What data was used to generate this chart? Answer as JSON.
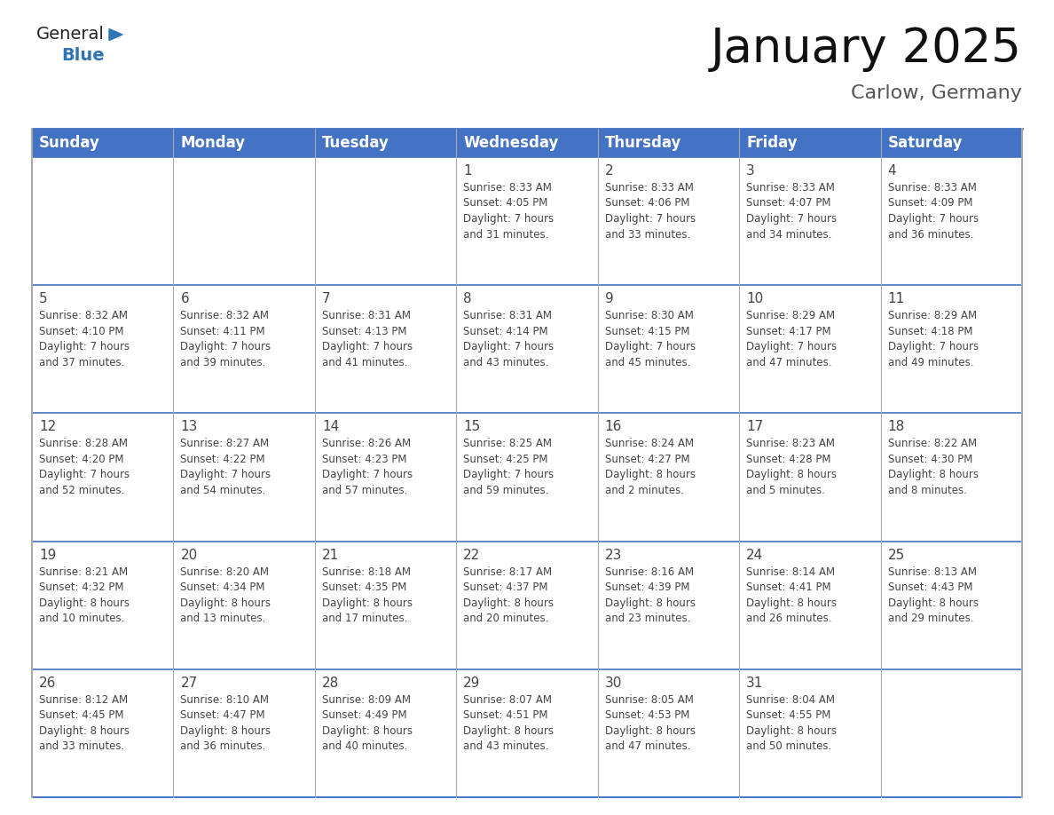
{
  "title": "January 2025",
  "subtitle": "Carlow, Germany",
  "days_of_week": [
    "Sunday",
    "Monday",
    "Tuesday",
    "Wednesday",
    "Thursday",
    "Friday",
    "Saturday"
  ],
  "header_bg_color": "#4472C4",
  "header_text_color": "#FFFFFF",
  "cell_bg_color": "#FFFFFF",
  "border_color": "#4472C4",
  "row_line_color": "#4472C4",
  "col_line_color": "#AAAAAA",
  "text_color": "#444444",
  "title_color": "#111111",
  "subtitle_color": "#555555",
  "logo_general_color": "#222222",
  "logo_blue_color": "#2E75B6",
  "title_fontsize": 38,
  "subtitle_fontsize": 16,
  "header_fontsize": 12,
  "day_num_fontsize": 11,
  "info_fontsize": 8.5,
  "logo_fontsize": 14,
  "weeks": [
    [
      {
        "day": null,
        "info": ""
      },
      {
        "day": null,
        "info": ""
      },
      {
        "day": null,
        "info": ""
      },
      {
        "day": 1,
        "info": "Sunrise: 8:33 AM\nSunset: 4:05 PM\nDaylight: 7 hours\nand 31 minutes."
      },
      {
        "day": 2,
        "info": "Sunrise: 8:33 AM\nSunset: 4:06 PM\nDaylight: 7 hours\nand 33 minutes."
      },
      {
        "day": 3,
        "info": "Sunrise: 8:33 AM\nSunset: 4:07 PM\nDaylight: 7 hours\nand 34 minutes."
      },
      {
        "day": 4,
        "info": "Sunrise: 8:33 AM\nSunset: 4:09 PM\nDaylight: 7 hours\nand 36 minutes."
      }
    ],
    [
      {
        "day": 5,
        "info": "Sunrise: 8:32 AM\nSunset: 4:10 PM\nDaylight: 7 hours\nand 37 minutes."
      },
      {
        "day": 6,
        "info": "Sunrise: 8:32 AM\nSunset: 4:11 PM\nDaylight: 7 hours\nand 39 minutes."
      },
      {
        "day": 7,
        "info": "Sunrise: 8:31 AM\nSunset: 4:13 PM\nDaylight: 7 hours\nand 41 minutes."
      },
      {
        "day": 8,
        "info": "Sunrise: 8:31 AM\nSunset: 4:14 PM\nDaylight: 7 hours\nand 43 minutes."
      },
      {
        "day": 9,
        "info": "Sunrise: 8:30 AM\nSunset: 4:15 PM\nDaylight: 7 hours\nand 45 minutes."
      },
      {
        "day": 10,
        "info": "Sunrise: 8:29 AM\nSunset: 4:17 PM\nDaylight: 7 hours\nand 47 minutes."
      },
      {
        "day": 11,
        "info": "Sunrise: 8:29 AM\nSunset: 4:18 PM\nDaylight: 7 hours\nand 49 minutes."
      }
    ],
    [
      {
        "day": 12,
        "info": "Sunrise: 8:28 AM\nSunset: 4:20 PM\nDaylight: 7 hours\nand 52 minutes."
      },
      {
        "day": 13,
        "info": "Sunrise: 8:27 AM\nSunset: 4:22 PM\nDaylight: 7 hours\nand 54 minutes."
      },
      {
        "day": 14,
        "info": "Sunrise: 8:26 AM\nSunset: 4:23 PM\nDaylight: 7 hours\nand 57 minutes."
      },
      {
        "day": 15,
        "info": "Sunrise: 8:25 AM\nSunset: 4:25 PM\nDaylight: 7 hours\nand 59 minutes."
      },
      {
        "day": 16,
        "info": "Sunrise: 8:24 AM\nSunset: 4:27 PM\nDaylight: 8 hours\nand 2 minutes."
      },
      {
        "day": 17,
        "info": "Sunrise: 8:23 AM\nSunset: 4:28 PM\nDaylight: 8 hours\nand 5 minutes."
      },
      {
        "day": 18,
        "info": "Sunrise: 8:22 AM\nSunset: 4:30 PM\nDaylight: 8 hours\nand 8 minutes."
      }
    ],
    [
      {
        "day": 19,
        "info": "Sunrise: 8:21 AM\nSunset: 4:32 PM\nDaylight: 8 hours\nand 10 minutes."
      },
      {
        "day": 20,
        "info": "Sunrise: 8:20 AM\nSunset: 4:34 PM\nDaylight: 8 hours\nand 13 minutes."
      },
      {
        "day": 21,
        "info": "Sunrise: 8:18 AM\nSunset: 4:35 PM\nDaylight: 8 hours\nand 17 minutes."
      },
      {
        "day": 22,
        "info": "Sunrise: 8:17 AM\nSunset: 4:37 PM\nDaylight: 8 hours\nand 20 minutes."
      },
      {
        "day": 23,
        "info": "Sunrise: 8:16 AM\nSunset: 4:39 PM\nDaylight: 8 hours\nand 23 minutes."
      },
      {
        "day": 24,
        "info": "Sunrise: 8:14 AM\nSunset: 4:41 PM\nDaylight: 8 hours\nand 26 minutes."
      },
      {
        "day": 25,
        "info": "Sunrise: 8:13 AM\nSunset: 4:43 PM\nDaylight: 8 hours\nand 29 minutes."
      }
    ],
    [
      {
        "day": 26,
        "info": "Sunrise: 8:12 AM\nSunset: 4:45 PM\nDaylight: 8 hours\nand 33 minutes."
      },
      {
        "day": 27,
        "info": "Sunrise: 8:10 AM\nSunset: 4:47 PM\nDaylight: 8 hours\nand 36 minutes."
      },
      {
        "day": 28,
        "info": "Sunrise: 8:09 AM\nSunset: 4:49 PM\nDaylight: 8 hours\nand 40 minutes."
      },
      {
        "day": 29,
        "info": "Sunrise: 8:07 AM\nSunset: 4:51 PM\nDaylight: 8 hours\nand 43 minutes."
      },
      {
        "day": 30,
        "info": "Sunrise: 8:05 AM\nSunset: 4:53 PM\nDaylight: 8 hours\nand 47 minutes."
      },
      {
        "day": 31,
        "info": "Sunrise: 8:04 AM\nSunset: 4:55 PM\nDaylight: 8 hours\nand 50 minutes."
      },
      {
        "day": null,
        "info": ""
      }
    ]
  ]
}
